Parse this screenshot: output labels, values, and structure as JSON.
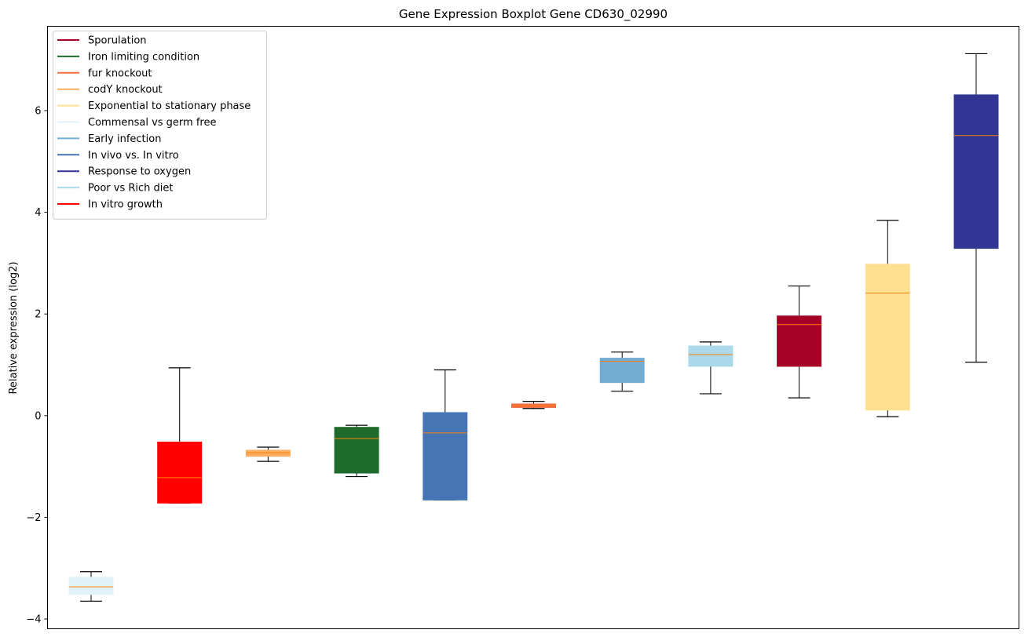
{
  "chart_data": {
    "type": "boxplot",
    "title": "Gene Expression Boxplot Gene CD630_02990",
    "xlabel": "",
    "ylabel": "Relative expression (log2)",
    "ylim": [
      -4.2,
      7.65
    ],
    "yticks": [
      -4,
      -2,
      0,
      2,
      4,
      6
    ],
    "ytick_labels": [
      "−4",
      "−2",
      "0",
      "2",
      "4",
      "6"
    ],
    "legend_position": "top-left",
    "legend": [
      {
        "name": "Sporulation",
        "color": "#a50026"
      },
      {
        "name": "Iron limiting condition",
        "color": "#1f6b2b"
      },
      {
        "name": "fur knockout",
        "color": "#f46d43"
      },
      {
        "name": "codY knockout",
        "color": "#fdae61"
      },
      {
        "name": "Exponential to stationary phase",
        "color": "#fee090"
      },
      {
        "name": "Commensal vs germ free",
        "color": "#e0f3f8"
      },
      {
        "name": "Early infection",
        "color": "#74add1"
      },
      {
        "name": "In vivo vs. In vitro",
        "color": "#4575b4"
      },
      {
        "name": "Response to oxygen",
        "color": "#313695"
      },
      {
        "name": "Poor vs Rich diet",
        "color": "#abd9e9"
      },
      {
        "name": "In vitro growth",
        "color": "#ff0000"
      }
    ],
    "boxes": [
      {
        "group": "Commensal vs germ free",
        "color": "#e0f3f8",
        "whisker_low": -3.65,
        "q1": -3.52,
        "median": -3.37,
        "q3": -3.18,
        "whisker_high": -3.07
      },
      {
        "group": "In vitro growth",
        "color": "#ff0000",
        "whisker_low": -1.72,
        "q1": -1.72,
        "median": -1.22,
        "q3": -0.52,
        "whisker_high": 0.94
      },
      {
        "group": "codY knockout",
        "color": "#fdae61",
        "whisker_low": -0.9,
        "q1": -0.8,
        "median": -0.73,
        "q3": -0.68,
        "whisker_high": -0.62
      },
      {
        "group": "Iron limiting condition",
        "color": "#1f6b2b",
        "whisker_low": -1.2,
        "q1": -1.13,
        "median": -0.45,
        "q3": -0.23,
        "whisker_high": -0.19
      },
      {
        "group": "In vivo vs. In vitro",
        "color": "#4575b4",
        "whisker_low": -1.66,
        "q1": -1.66,
        "median": -0.34,
        "q3": 0.06,
        "whisker_high": 0.9
      },
      {
        "group": "fur knockout",
        "color": "#f46d43",
        "whisker_low": 0.14,
        "q1": 0.16,
        "median": 0.2,
        "q3": 0.23,
        "whisker_high": 0.28
      },
      {
        "group": "Early infection",
        "color": "#74add1",
        "whisker_low": 0.48,
        "q1": 0.65,
        "median": 1.07,
        "q3": 1.13,
        "whisker_high": 1.25
      },
      {
        "group": "Poor vs Rich diet",
        "color": "#abd9e9",
        "whisker_low": 0.43,
        "q1": 0.97,
        "median": 1.2,
        "q3": 1.37,
        "whisker_high": 1.45
      },
      {
        "group": "Sporulation",
        "color": "#a50026",
        "whisker_low": 0.35,
        "q1": 0.97,
        "median": 1.79,
        "q3": 1.96,
        "whisker_high": 2.55
      },
      {
        "group": "Exponential to stationary phase",
        "color": "#fee090",
        "whisker_low": -0.02,
        "q1": 0.11,
        "median": 2.41,
        "q3": 2.98,
        "whisker_high": 3.84
      },
      {
        "group": "Response to oxygen",
        "color": "#313695",
        "whisker_low": 1.05,
        "q1": 3.29,
        "median": 5.51,
        "q3": 6.31,
        "whisker_high": 7.12
      }
    ],
    "median_color": "#ff7f0e",
    "grid": false
  }
}
